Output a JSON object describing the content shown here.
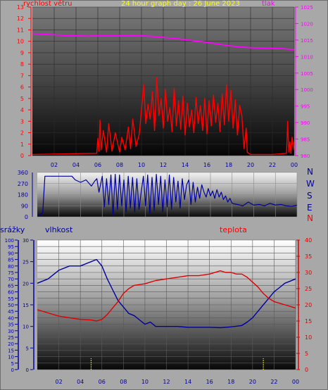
{
  "colors": {
    "background": "#a8a8a8",
    "wind": "#ff0000",
    "pressure": "#ff00ff",
    "direction": "#0000a0",
    "humidity": "#0000a0",
    "temperature": "#e00000",
    "rain": "#0000a0",
    "rain_marks": "#ffff00",
    "title": "#ffff00"
  },
  "header": {
    "title": "24 hour graph day : 26 June 2023",
    "wind_label": "rychlost větru",
    "pressure_label": "tlak",
    "rain_label": "srážky",
    "humidity_label": "vlhkost",
    "temperature_label": "teplota",
    "compass": [
      "N",
      "W",
      "S",
      "E",
      "N"
    ]
  },
  "chart_data": [
    {
      "type": "line",
      "title": "24 hour graph day : 26 June 2023",
      "x_ticks": [
        "02",
        "04",
        "06",
        "08",
        "10",
        "12",
        "14",
        "16",
        "18",
        "20",
        "22",
        "00"
      ],
      "xlim": [
        0,
        24
      ],
      "y_left_ticks": [
        "0",
        "1",
        "2",
        "3",
        "4",
        "5",
        "6",
        "7",
        "8",
        "9",
        "10",
        "11",
        "12",
        "13"
      ],
      "ylim_left": [
        0,
        13
      ],
      "y_right_ticks": [
        "980",
        "985",
        "990",
        "995",
        "1000",
        "1005",
        "1010",
        "1015",
        "1020",
        "1025"
      ],
      "ylim_right": [
        980,
        1025
      ],
      "series": [
        {
          "name": "rychlost větru",
          "axis": "left",
          "color": "#ff0000",
          "x": [
            0,
            5.9,
            6.0,
            6.1,
            6.2,
            6.3,
            6.5,
            6.8,
            7.0,
            7.3,
            7.6,
            8.0,
            8.2,
            8.5,
            8.8,
            9.0,
            9.2,
            9.5,
            9.8,
            10.0,
            10.2,
            10.4,
            10.6,
            10.8,
            11.0,
            11.2,
            11.4,
            11.6,
            11.8,
            12.0,
            12.2,
            12.4,
            12.6,
            12.8,
            13.0,
            13.2,
            13.4,
            13.6,
            13.8,
            14.0,
            14.2,
            14.4,
            14.6,
            14.8,
            15.0,
            15.2,
            15.4,
            15.6,
            15.8,
            16.0,
            16.2,
            16.4,
            16.6,
            16.8,
            17.0,
            17.2,
            17.4,
            17.6,
            17.8,
            18.0,
            18.2,
            18.4,
            18.6,
            18.8,
            19.0,
            19.2,
            19.4,
            19.6,
            19.7,
            19.8,
            20.0,
            22.0,
            23.3,
            23.4,
            23.5,
            23.6,
            23.7,
            23.8,
            24.0
          ],
          "y": [
            0.1,
            0.2,
            1.5,
            0.4,
            3.1,
            0.5,
            2.2,
            0.3,
            2.8,
            0.4,
            2.0,
            0.3,
            1.6,
            0.5,
            2.5,
            0.6,
            3.2,
            0.8,
            1.9,
            4.0,
            6.2,
            2.8,
            4.5,
            3.2,
            5.6,
            2.2,
            6.8,
            3.5,
            5.0,
            2.4,
            5.8,
            3.0,
            4.2,
            2.1,
            5.9,
            2.6,
            4.8,
            2.3,
            5.2,
            1.8,
            4.6,
            2.5,
            4.0,
            2.0,
            5.1,
            2.8,
            4.4,
            2.2,
            5.0,
            1.9,
            4.8,
            2.6,
            5.3,
            2.9,
            4.6,
            2.1,
            5.4,
            2.7,
            6.2,
            3.0,
            5.7,
            2.4,
            4.9,
            1.8,
            4.4,
            3.5,
            0.6,
            2.4,
            0.3,
            0.2,
            0.1,
            0.1,
            0.2,
            3.0,
            0.3,
            1.2,
            0.2,
            1.6,
            0.5
          ]
        },
        {
          "name": "tlak",
          "axis": "right",
          "color": "#ff00ff",
          "x": [
            0,
            1,
            2,
            3,
            4,
            5,
            6,
            7,
            8,
            9,
            10,
            11,
            12,
            13,
            14,
            15,
            16,
            17,
            18,
            19,
            20,
            21,
            22,
            23,
            24
          ],
          "y": [
            1017.0,
            1016.8,
            1016.6,
            1016.4,
            1016.3,
            1016.2,
            1016.3,
            1016.3,
            1016.3,
            1016.4,
            1016.3,
            1016.1,
            1015.8,
            1015.5,
            1015.1,
            1014.7,
            1014.3,
            1013.8,
            1013.3,
            1012.9,
            1012.7,
            1012.6,
            1012.5,
            1012.4,
            1012.1
          ]
        }
      ]
    },
    {
      "type": "line",
      "y_left_ticks": [
        "0",
        "90",
        "180",
        "270",
        "360"
      ],
      "ylim": [
        0,
        360
      ],
      "y_right_labels": [
        "N",
        "W",
        "S",
        "E",
        "N"
      ],
      "series": [
        {
          "name": "",
          "color": "#0000a0",
          "x": [
            0,
            0.5,
            0.7,
            3.2,
            3.5,
            4.0,
            4.5,
            5.0,
            5.3,
            5.5,
            5.7,
            6.0,
            6.2,
            6.4,
            6.6,
            6.8,
            7.0,
            7.2,
            7.4,
            7.6,
            7.8,
            8.0,
            8.2,
            8.4,
            8.6,
            8.8,
            9.0,
            9.2,
            9.4,
            9.6,
            9.8,
            10.0,
            10.2,
            10.4,
            10.6,
            10.8,
            11.0,
            11.2,
            11.4,
            11.6,
            11.8,
            12.0,
            12.2,
            12.4,
            12.6,
            12.8,
            13.0,
            13.2,
            13.4,
            13.6,
            13.8,
            14.0,
            14.2,
            14.4,
            14.6,
            14.8,
            15.0,
            15.2,
            15.4,
            15.6,
            15.8,
            16.0,
            16.2,
            16.4,
            16.6,
            16.8,
            17.0,
            17.2,
            17.4,
            17.6,
            17.8,
            18.0,
            18.5,
            19.0,
            19.5,
            20.0,
            20.5,
            21.0,
            21.5,
            22.0,
            22.5,
            23.0,
            23.5,
            24.0
          ],
          "y": [
            10,
            30,
            330,
            330,
            300,
            280,
            300,
            250,
            290,
            310,
            200,
            330,
            80,
            310,
            100,
            340,
            20,
            345,
            60,
            340,
            90,
            300,
            40,
            330,
            70,
            320,
            40,
            310,
            60,
            200,
            330,
            90,
            340,
            30,
            320,
            50,
            345,
            100,
            330,
            40,
            300,
            80,
            340,
            60,
            320,
            120,
            290,
            70,
            310,
            140,
            260,
            300,
            100,
            280,
            120,
            240,
            150,
            260,
            200,
            160,
            230,
            170,
            210,
            150,
            220,
            160,
            200,
            140,
            170,
            120,
            150,
            110,
            100,
            90,
            120,
            95,
            100,
            90,
            110,
            95,
            100,
            90,
            85,
            95
          ]
        }
      ]
    },
    {
      "type": "line",
      "x_ticks": [
        "02",
        "04",
        "06",
        "08",
        "10",
        "12",
        "14",
        "16",
        "18",
        "20",
        "22",
        "00"
      ],
      "xlim": [
        0,
        24
      ],
      "rain_ticks": [
        "0",
        "5",
        "10",
        "15",
        "20",
        "25",
        "30",
        "35",
        "40",
        "45",
        "50",
        "55",
        "60",
        "65",
        "70",
        "75",
        "80",
        "85",
        "90",
        "95",
        "100"
      ],
      "ylim_rain": [
        0,
        100
      ],
      "humidity_ticks": [
        "0",
        "5",
        "10",
        "15",
        "20",
        "25",
        "30"
      ],
      "ylim_humidity": [
        0,
        30
      ],
      "temperature_ticks": [
        "0",
        "5",
        "10",
        "15",
        "20",
        "25",
        "30",
        "35",
        "40"
      ],
      "ylim_temperature": [
        0,
        40
      ],
      "series": [
        {
          "name": "vlhkost",
          "axis": "humidity",
          "color": "#0000a0",
          "x": [
            0,
            1,
            2,
            3,
            4,
            5,
            5.5,
            6,
            6.5,
            7,
            7.5,
            8,
            8.5,
            9,
            9.5,
            10,
            10.5,
            11,
            12,
            13,
            14,
            15,
            16,
            17,
            18,
            19,
            19.5,
            20,
            20.5,
            21,
            21.5,
            22,
            22.5,
            23,
            23.5,
            24
          ],
          "y": [
            20,
            21,
            23,
            24,
            24,
            25,
            25.5,
            24,
            21,
            18.5,
            16,
            14.5,
            13,
            12.5,
            11.5,
            10.5,
            11,
            10,
            10,
            10,
            9.8,
            9.8,
            9.8,
            9.7,
            9.9,
            10.2,
            11,
            12,
            13.5,
            15,
            16.5,
            18,
            19,
            20,
            20.5,
            21
          ]
        },
        {
          "name": "teplota",
          "axis": "temperature",
          "color": "#e00000",
          "x": [
            0,
            1,
            2,
            3,
            4,
            5,
            5.5,
            6,
            6.5,
            7,
            7.5,
            8,
            8.5,
            9,
            10,
            11,
            12,
            13,
            14,
            15,
            16,
            17,
            17.5,
            18,
            18.5,
            19,
            19.5,
            20,
            20.5,
            21,
            21.5,
            22,
            22.5,
            23,
            24
          ],
          "y": [
            18.5,
            17.5,
            16.5,
            16,
            15.5,
            15.3,
            15,
            15.5,
            17,
            19,
            21,
            23.5,
            25,
            26,
            26.5,
            27.5,
            28,
            28.5,
            29,
            29,
            29.5,
            30.5,
            30,
            30,
            29.5,
            29.5,
            28.5,
            27,
            25.5,
            23.5,
            22,
            21,
            20.5,
            20,
            19
          ]
        },
        {
          "name": "srážky",
          "axis": "rain",
          "color": "#ffff00",
          "x": [
            5.0,
            21.0
          ],
          "y": [
            0,
            0
          ]
        }
      ]
    }
  ]
}
